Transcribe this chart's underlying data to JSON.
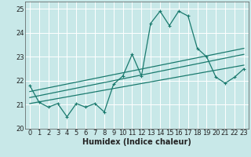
{
  "title": "",
  "xlabel": "Humidex (Indice chaleur)",
  "ylabel": "",
  "background_color": "#c8e8e8",
  "grid_color": "#ffffff",
  "line_color": "#1a7a6e",
  "xlim": [
    -0.5,
    23.5
  ],
  "ylim": [
    20.0,
    25.3
  ],
  "yticks": [
    20,
    21,
    22,
    23,
    24,
    25
  ],
  "xticks": [
    0,
    1,
    2,
    3,
    4,
    5,
    6,
    7,
    8,
    9,
    10,
    11,
    12,
    13,
    14,
    15,
    16,
    17,
    18,
    19,
    20,
    21,
    22,
    23
  ],
  "main_line_x": [
    0,
    1,
    2,
    3,
    4,
    5,
    6,
    7,
    8,
    9,
    10,
    11,
    12,
    13,
    14,
    15,
    16,
    17,
    18,
    19,
    20,
    21,
    22,
    23
  ],
  "main_line_y": [
    21.8,
    21.1,
    20.9,
    21.05,
    20.5,
    21.05,
    20.9,
    21.05,
    20.7,
    21.85,
    22.2,
    23.1,
    22.2,
    24.4,
    24.9,
    24.3,
    24.9,
    24.7,
    23.35,
    23.0,
    22.15,
    21.9,
    22.15,
    22.5
  ],
  "trend1_x": [
    0,
    23
  ],
  "trend1_y": [
    21.55,
    23.35
  ],
  "trend2_x": [
    0,
    23
  ],
  "trend2_y": [
    21.3,
    23.1
  ],
  "trend3_x": [
    0,
    23
  ],
  "trend3_y": [
    21.05,
    22.65
  ],
  "font_size_label": 7,
  "font_size_tick": 6,
  "marker_size": 3,
  "linewidth": 0.9
}
